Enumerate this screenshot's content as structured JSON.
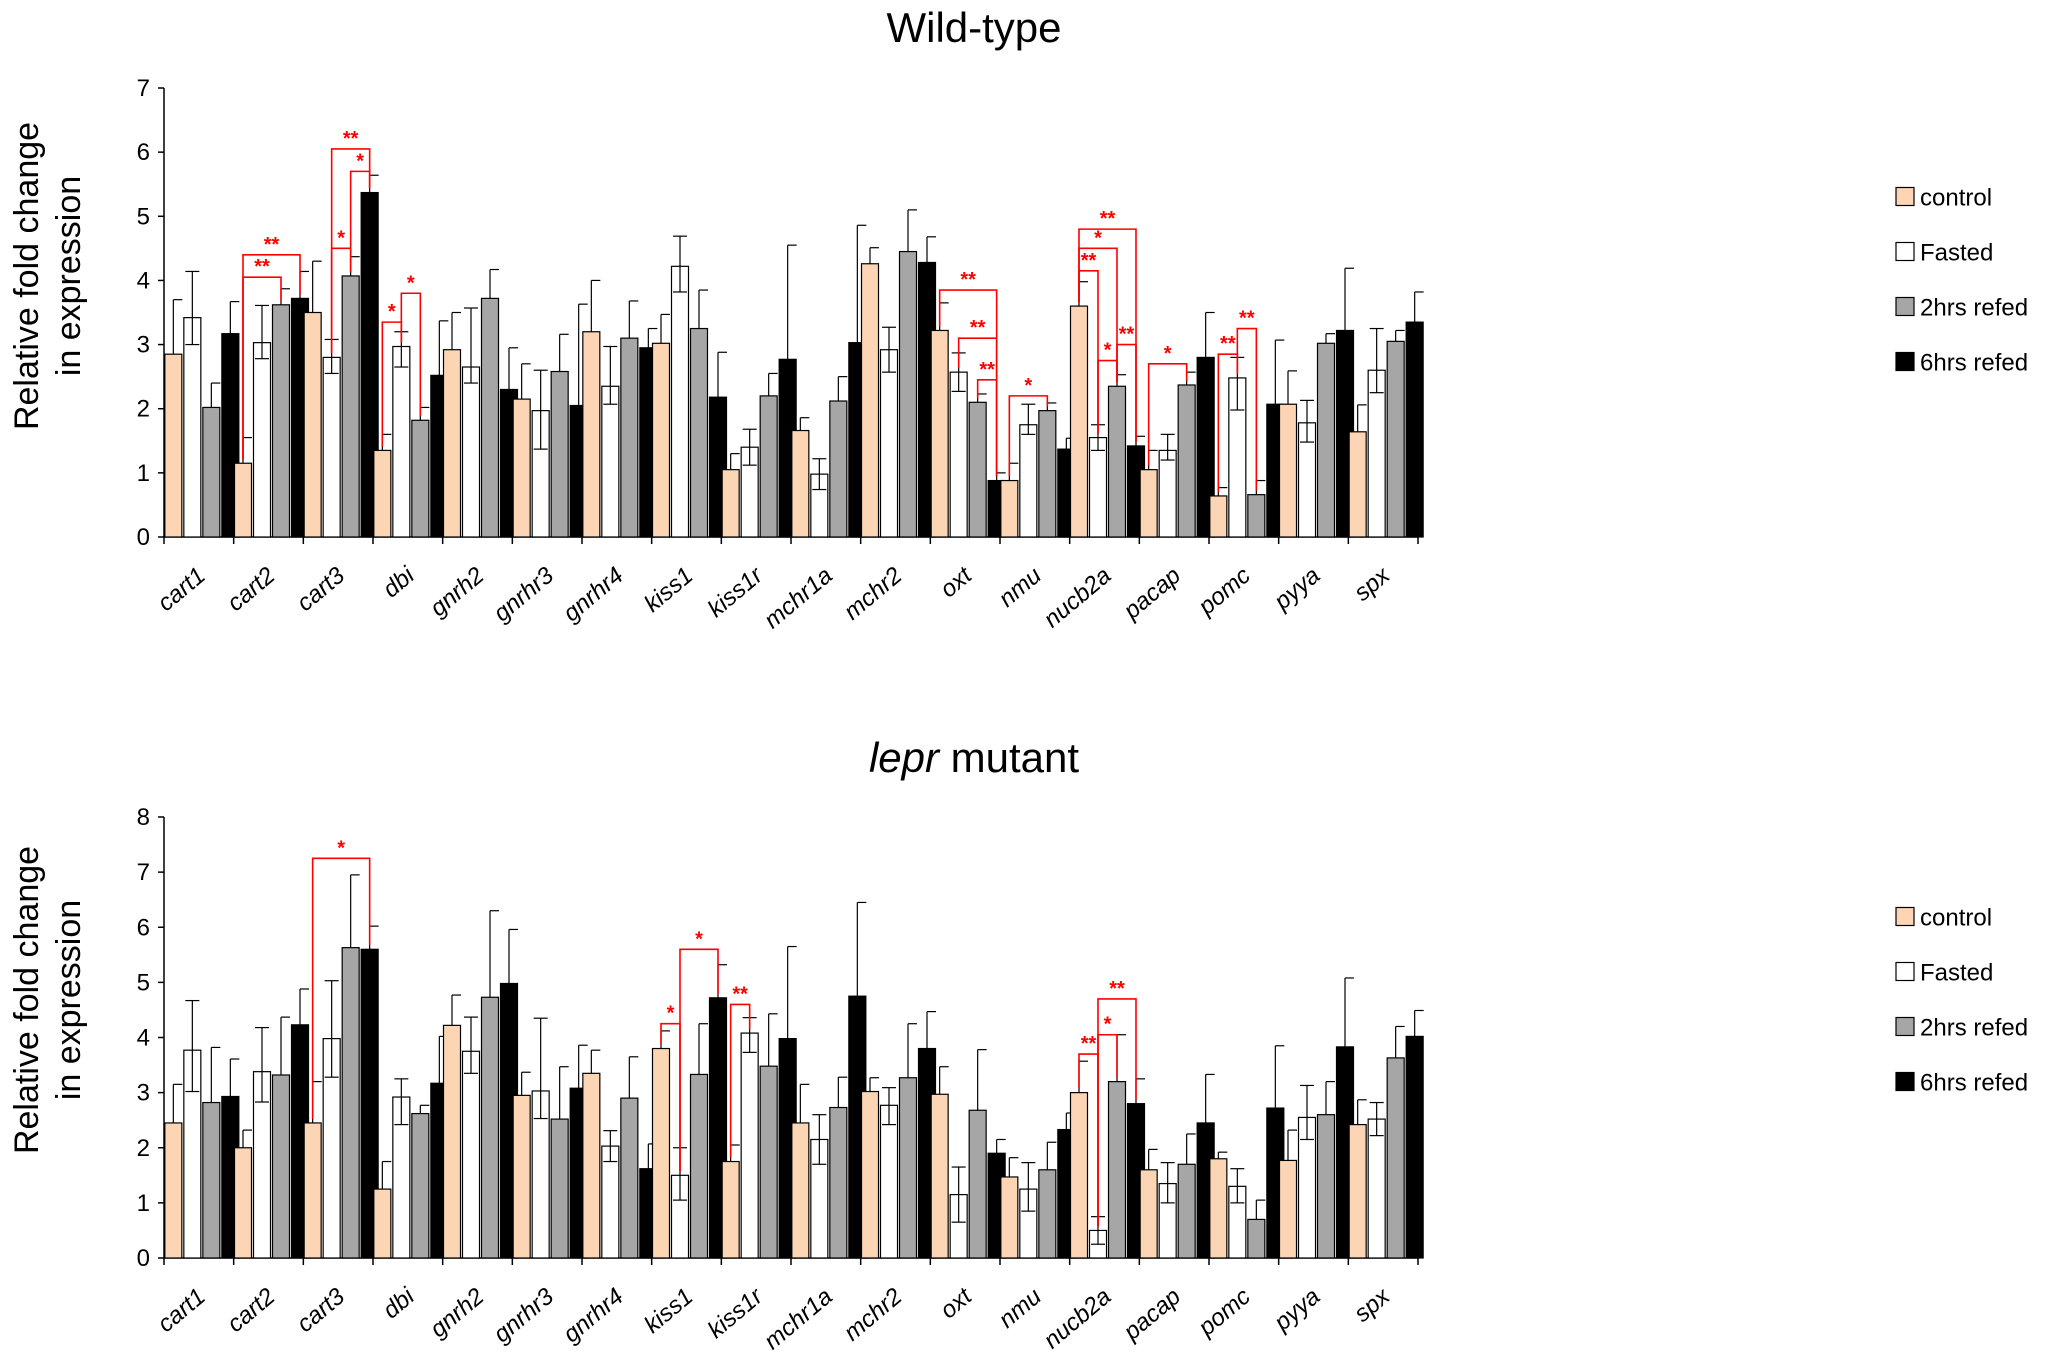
{
  "chart_data": [
    {
      "type": "bar",
      "title": "Wild-type",
      "ylabel": [
        "Relative fold change",
        "in expression"
      ],
      "ylim": [
        0,
        7
      ],
      "yticks": [
        0,
        1,
        2,
        3,
        4,
        5,
        6,
        7
      ],
      "grid": false,
      "legend_position": "right",
      "categories": [
        "cart1",
        "cart2",
        "cart3",
        "dbi",
        "gnrh2",
        "gnrhr3",
        "gnrhr4",
        "kiss1",
        "kiss1r",
        "mchr1a",
        "mchr2",
        "oxt",
        "nmu",
        "nucb2a",
        "pacap",
        "pomc",
        "pyya",
        "spx"
      ],
      "series": [
        {
          "name": "control",
          "color": "#fcd5b4",
          "values": [
            2.85,
            1.15,
            3.5,
            1.35,
            2.92,
            2.15,
            3.2,
            3.02,
            1.05,
            1.66,
            4.26,
            3.22,
            0.88,
            3.6,
            1.05,
            0.64,
            2.07,
            1.64
          ],
          "errors": [
            0.85,
            0.4,
            0.8,
            0.25,
            0.58,
            0.55,
            0.8,
            0.45,
            0.25,
            0.2,
            0.25,
            0.43,
            0.27,
            0.38,
            0.3,
            0.13,
            0.52,
            0.42
          ]
        },
        {
          "name": "Fasted",
          "color": "#ffffff",
          "values": [
            3.42,
            3.03,
            2.8,
            2.97,
            2.65,
            1.97,
            2.35,
            4.22,
            1.4,
            0.98,
            2.92,
            2.57,
            1.75,
            1.55,
            1.35,
            2.48,
            1.78,
            2.6
          ]
        },
        {
          "name": "2hrs refed",
          "color": "#a6a6a6",
          "values": [
            2.02,
            3.62,
            4.07,
            1.82,
            3.72,
            2.58,
            3.1,
            3.25,
            2.2,
            2.12,
            4.45,
            2.1,
            1.97,
            2.35,
            2.37,
            0.66,
            3.02,
            3.05
          ],
          "errors": [
            0.38,
            0.25,
            0.3,
            0.2,
            0.45,
            0.58,
            0.58,
            0.6,
            0.35,
            0.38,
            0.65,
            0.13,
            0.12,
            0.18,
            0.2,
            0.22,
            0.15,
            0.17
          ]
        },
        {
          "name": "6hrs refed",
          "color": "#000000",
          "values": [
            3.17,
            3.72,
            5.37,
            2.52,
            2.3,
            2.05,
            2.95,
            2.18,
            2.77,
            3.03,
            4.28,
            0.88,
            1.37,
            1.42,
            2.8,
            2.07,
            3.22,
            3.35
          ],
          "errors": [
            0.5,
            0.42,
            0.27,
            0.85,
            0.65,
            1.58,
            0.3,
            0.7,
            1.78,
            1.83,
            0.4,
            0.12,
            0.17,
            0.15,
            0.7,
            1.0,
            0.97,
            0.47
          ]
        }
      ],
      "fasted_errors_down": [
        0.42,
        0.25,
        0.25,
        0.32,
        0.25,
        0.6,
        0.28,
        0.4,
        0.28,
        0.24,
        0.35,
        0.3,
        0.15,
        0.2,
        0.15,
        0.5,
        0.3,
        0.35
      ],
      "fasted_errors_up": [
        0.72,
        0.58,
        0.28,
        0.23,
        0.92,
        0.63,
        0.62,
        0.47,
        0.28,
        0.24,
        0.35,
        0.3,
        0.32,
        0.2,
        0.25,
        0.32,
        0.35,
        0.65
      ],
      "significance": [
        {
          "category": "cart2",
          "from": 0,
          "to": 3,
          "label": "**",
          "level": 4.4
        },
        {
          "category": "cart2",
          "from": 0,
          "to": 2,
          "label": "**",
          "level": 4.05
        },
        {
          "category": "cart3",
          "from": 1,
          "to": 3,
          "label": "**",
          "level": 6.05
        },
        {
          "category": "cart3",
          "from": 2,
          "to": 3,
          "label": "*",
          "level": 5.7
        },
        {
          "category": "cart3",
          "from": 1,
          "to": 2,
          "label": "*",
          "level": 4.5
        },
        {
          "category": "dbi",
          "from": 0,
          "to": 1,
          "label": "*",
          "level": 3.35
        },
        {
          "category": "dbi",
          "from": 1,
          "to": 2,
          "label": "*",
          "level": 3.8
        },
        {
          "category": "oxt",
          "from": 0,
          "to": 3,
          "label": "**",
          "level": 3.85
        },
        {
          "category": "oxt",
          "from": 1,
          "to": 3,
          "label": "**",
          "level": 3.1
        },
        {
          "category": "oxt",
          "from": 2,
          "to": 3,
          "label": "**",
          "level": 2.45
        },
        {
          "category": "nmu",
          "from": 0,
          "to": 2,
          "label": "*",
          "level": 2.2
        },
        {
          "category": "nucb2a",
          "from": 0,
          "to": 3,
          "label": "**",
          "level": 4.8
        },
        {
          "category": "nucb2a",
          "from": 0,
          "to": 2,
          "label": "*",
          "level": 4.5
        },
        {
          "category": "nucb2a",
          "from": 0,
          "to": 1,
          "label": "**",
          "level": 4.15
        },
        {
          "category": "nucb2a",
          "from": 2,
          "to": 3,
          "label": "**",
          "level": 3.0
        },
        {
          "category": "nucb2a",
          "from": 1,
          "to": 2,
          "label": "*",
          "level": 2.75
        },
        {
          "category": "pacap",
          "from": 0,
          "to": 2,
          "label": "*",
          "level": 2.7
        },
        {
          "category": "pomc",
          "from": 0,
          "to": 1,
          "label": "**",
          "level": 2.85
        },
        {
          "category": "pomc",
          "from": 1,
          "to": 2,
          "label": "**",
          "level": 3.25
        }
      ]
    },
    {
      "type": "bar",
      "title_italic": "lepr",
      "title_rest": " mutant",
      "ylabel": [
        "Relative fold change",
        "in expression"
      ],
      "ylim": [
        0,
        8
      ],
      "yticks": [
        0,
        1,
        2,
        3,
        4,
        5,
        6,
        7,
        8
      ],
      "grid": false,
      "legend_position": "right",
      "categories": [
        "cart1",
        "cart2",
        "cart3",
        "dbi",
        "gnrh2",
        "gnrhr3",
        "gnrhr4",
        "kiss1",
        "kiss1r",
        "mchr1a",
        "mchr2",
        "oxt",
        "nmu",
        "nucb2a",
        "pacap",
        "pomc",
        "pyya",
        "spx"
      ],
      "series": [
        {
          "name": "control",
          "color": "#fcd5b4",
          "values": [
            2.45,
            2.0,
            2.45,
            1.25,
            4.22,
            2.95,
            3.35,
            3.8,
            1.75,
            2.45,
            3.02,
            2.97,
            1.47,
            3.0,
            1.6,
            1.8,
            1.77,
            2.42
          ],
          "errors": [
            0.7,
            0.32,
            0.75,
            0.5,
            0.55,
            0.42,
            0.42,
            0.32,
            0.3,
            0.7,
            0.25,
            0.5,
            0.35,
            0.57,
            0.37,
            0.12,
            0.55,
            0.45
          ]
        },
        {
          "name": "Fasted",
          "color": "#ffffff",
          "values": [
            3.77,
            3.38,
            3.98,
            2.92,
            3.75,
            3.03,
            2.03,
            1.5,
            4.08,
            2.15,
            2.77,
            1.15,
            1.25,
            0.5,
            1.35,
            1.3,
            2.55,
            2.52
          ]
        },
        {
          "name": "2hrs refed",
          "color": "#a6a6a6",
          "values": [
            2.82,
            3.32,
            5.63,
            2.62,
            4.73,
            2.52,
            2.9,
            3.33,
            3.48,
            2.73,
            3.27,
            2.68,
            1.6,
            3.2,
            1.7,
            0.7,
            2.6,
            3.63
          ],
          "errors": [
            1.0,
            1.05,
            1.32,
            0.15,
            1.57,
            0.95,
            0.75,
            0.92,
            0.95,
            0.55,
            0.98,
            1.1,
            0.5,
            0.85,
            0.55,
            0.35,
            0.6,
            0.57
          ]
        },
        {
          "name": "6hrs refed",
          "color": "#000000",
          "values": [
            2.93,
            4.23,
            5.6,
            3.17,
            4.98,
            3.08,
            1.62,
            4.72,
            3.98,
            4.75,
            3.8,
            1.9,
            2.33,
            2.8,
            2.45,
            2.72,
            3.83,
            4.02
          ],
          "errors": [
            0.68,
            0.65,
            0.42,
            0.85,
            0.98,
            0.78,
            0.45,
            0.6,
            1.67,
            1.7,
            0.67,
            0.25,
            0.3,
            0.45,
            0.88,
            1.13,
            1.25,
            0.47
          ]
        }
      ],
      "fasted_errors_down": [
        0.75,
        0.55,
        0.7,
        0.5,
        0.4,
        0.5,
        0.28,
        0.45,
        0.35,
        0.45,
        0.35,
        0.5,
        0.4,
        0.25,
        0.35,
        0.3,
        0.4,
        0.3
      ],
      "fasted_errors_up": [
        0.9,
        0.8,
        1.05,
        0.33,
        0.62,
        1.32,
        0.28,
        0.5,
        0.28,
        0.45,
        0.32,
        0.5,
        0.48,
        0.25,
        0.38,
        0.32,
        0.58,
        0.3
      ],
      "significance": [
        {
          "category": "cart3",
          "from": 0,
          "to": 3,
          "label": "*",
          "level": 7.25
        },
        {
          "category": "kiss1",
          "from": 0,
          "to": 1,
          "label": "*",
          "level": 4.25
        },
        {
          "category": "kiss1",
          "from": 1,
          "to": 3,
          "label": "*",
          "level": 5.6
        },
        {
          "category": "kiss1r",
          "from": 0,
          "to": 1,
          "label": "**",
          "level": 4.6
        },
        {
          "category": "nucb2a",
          "from": 0,
          "to": 1,
          "label": "**",
          "level": 3.7
        },
        {
          "category": "nucb2a",
          "from": 1,
          "to": 2,
          "label": "*",
          "level": 4.05
        },
        {
          "category": "nucb2a",
          "from": 1,
          "to": 3,
          "label": "**",
          "level": 4.7
        }
      ]
    }
  ]
}
